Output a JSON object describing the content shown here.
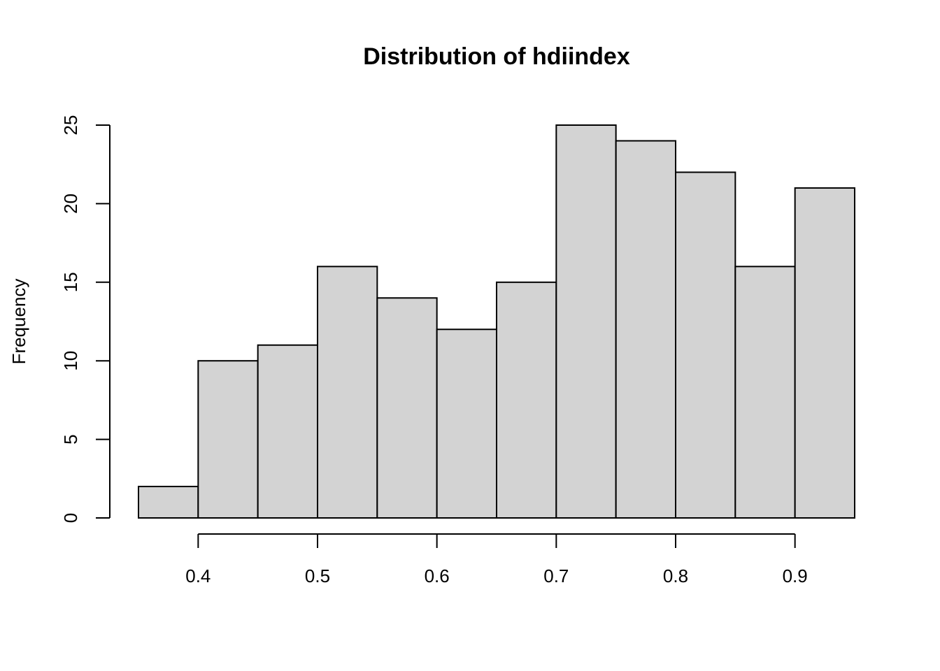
{
  "chart_data": {
    "type": "bar",
    "title": "Distribution of hdiindex",
    "xlabel": "",
    "ylabel": "Frequency",
    "bin_edges": [
      0.35,
      0.4,
      0.45,
      0.5,
      0.55,
      0.6,
      0.65,
      0.7,
      0.75,
      0.8,
      0.85,
      0.9,
      0.95
    ],
    "values": [
      2,
      10,
      11,
      16,
      14,
      12,
      15,
      25,
      24,
      22,
      16,
      21
    ],
    "xlim": [
      0.35,
      0.95
    ],
    "ylim": [
      0,
      25
    ],
    "xticks": [
      "0.4",
      "0.5",
      "0.6",
      "0.7",
      "0.8",
      "0.9"
    ],
    "yticks": [
      "0",
      "5",
      "10",
      "15",
      "20",
      "25"
    ],
    "bar_color": "#d3d3d3",
    "bar_edge_color": "#000000",
    "grid": false,
    "legend": "none"
  }
}
